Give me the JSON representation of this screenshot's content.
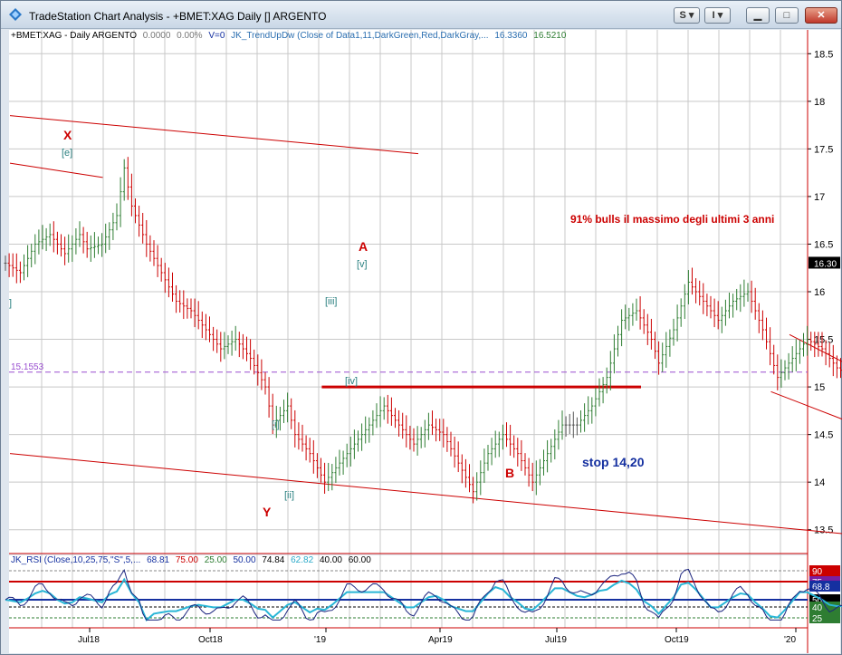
{
  "window": {
    "title": "TradeStation Chart Analysis - +BMET:XAG Daily [] ARGENTO",
    "buttons": {
      "s_label": "S ▾",
      "i_label": "I ▾"
    }
  },
  "legend": {
    "symbol": "+BMET:XAG - Daily  ARGENTO",
    "change": "0.0000",
    "pct": "0.00%",
    "volume": "V=0",
    "indicator": "JK_TrendUpDw (Close of Data1,11,DarkGreen,Red,DarkGray,...",
    "val1": "16.3360",
    "val2": "16.5210"
  },
  "sub_legend": {
    "name": "JK_RSI (Close,10,25,75,\"S\",5,...",
    "v1": "68.81",
    "v2": "75.00",
    "v3": "25.00",
    "v4": "50.00",
    "v5": "74.84",
    "v6": "62.82",
    "v7": "40.00",
    "v8": "60.00"
  },
  "colors": {
    "red": "#cc0000",
    "green": "#2e7d32",
    "teal": "#2a8080",
    "purple": "#9a4fd0",
    "navy": "#1530a0"
  },
  "chart_data": {
    "type": "bar",
    "price_axis": {
      "ticks": [
        18.5,
        18,
        17.5,
        17,
        16.5,
        16,
        15.5,
        15,
        14.5,
        14,
        13.5
      ],
      "ylim": [
        13.25,
        18.75
      ]
    },
    "current_price_label": "16.30",
    "x_ticks": [
      "Jul18",
      "Oct18",
      "'19",
      "Apr19",
      "Jul19",
      "Oct19",
      "'20"
    ],
    "hline": {
      "label": "15.1553",
      "value": 15.1553
    },
    "wave_labels": {
      "X": "X",
      "e": "[e]",
      "A": "A",
      "v": "[v]",
      "iii": "[iii]",
      "iv": "[iv]",
      "i": "[i]",
      "ii": "[ii]",
      "Y": "Y",
      "B": "B",
      "left_frag": "]"
    },
    "annotations": {
      "bulls": "91% bulls il massimo degli ultimi 3 anni",
      "stop": "stop 14,20"
    },
    "rsi": {
      "levels": [
        90,
        75,
        68.8,
        50,
        40,
        25
      ],
      "labels": [
        "90",
        "75",
        "68.8",
        "50",
        "40",
        "25"
      ]
    },
    "price_path": [
      [
        0,
        16.3
      ],
      [
        2,
        16.2
      ],
      [
        4,
        16.5
      ],
      [
        6,
        16.6
      ],
      [
        8,
        16.4
      ],
      [
        10,
        16.6
      ],
      [
        11,
        16.45
      ],
      [
        13,
        16.5
      ],
      [
        15,
        16.8
      ],
      [
        16,
        17.3
      ],
      [
        17,
        16.9
      ],
      [
        19,
        16.5
      ],
      [
        21,
        16.2
      ],
      [
        23,
        15.9
      ],
      [
        25,
        15.8
      ],
      [
        27,
        15.6
      ],
      [
        29,
        15.4
      ],
      [
        31,
        15.5
      ],
      [
        33,
        15.3
      ],
      [
        35,
        15.0
      ],
      [
        36,
        14.6
      ],
      [
        38,
        14.8
      ],
      [
        39,
        14.5
      ],
      [
        41,
        14.3
      ],
      [
        43,
        14.0
      ],
      [
        45,
        14.2
      ],
      [
        47,
        14.4
      ],
      [
        49,
        14.6
      ],
      [
        51,
        14.8
      ],
      [
        53,
        14.6
      ],
      [
        55,
        14.4
      ],
      [
        57,
        14.6
      ],
      [
        59,
        14.5
      ],
      [
        61,
        14.2
      ],
      [
        63,
        13.9
      ],
      [
        65,
        14.3
      ],
      [
        67,
        14.5
      ],
      [
        69,
        14.3
      ],
      [
        71,
        14.0
      ],
      [
        73,
        14.3
      ],
      [
        75,
        14.6
      ],
      [
        77,
        14.6
      ],
      [
        79,
        14.8
      ],
      [
        81,
        15.1
      ],
      [
        83,
        15.7
      ],
      [
        85,
        15.8
      ],
      [
        87,
        15.5
      ],
      [
        88,
        15.25
      ],
      [
        90,
        15.6
      ],
      [
        92,
        16.1
      ],
      [
        94,
        15.9
      ],
      [
        96,
        15.7
      ],
      [
        98,
        15.9
      ],
      [
        100,
        16.0
      ],
      [
        102,
        15.6
      ],
      [
        104,
        15.1
      ],
      [
        106,
        15.3
      ],
      [
        108,
        15.5
      ],
      [
        110,
        15.4
      ],
      [
        112,
        15.2
      ],
      [
        114,
        15.1
      ],
      [
        116,
        14.95
      ],
      [
        118,
        15.1
      ],
      [
        120,
        14.9
      ],
      [
        122,
        14.8
      ],
      [
        124,
        14.7
      ],
      [
        126,
        14.6
      ],
      [
        128,
        14.45
      ],
      [
        130,
        14.5
      ],
      [
        132,
        14.8
      ],
      [
        134,
        15.0
      ],
      [
        136,
        15.2
      ],
      [
        138,
        15.4
      ],
      [
        140,
        15.3
      ],
      [
        142,
        15.1
      ],
      [
        144,
        15.2
      ],
      [
        146,
        15.8
      ],
      [
        148,
        16.2
      ],
      [
        150,
        16.4
      ],
      [
        151,
        16.5
      ],
      [
        152,
        16.35
      ]
    ],
    "trend_lines": [
      {
        "x1": 0,
        "y1": 17.85,
        "x2": 110,
        "y2": 17.45
      },
      {
        "x1": 0,
        "y1": 17.35,
        "x2": 25,
        "y2": 17.2
      },
      {
        "x1": 0,
        "y1": 14.3,
        "x2": 280,
        "y2": 13.25
      },
      {
        "x1": 84,
        "y1": 15.0,
        "x2": 170,
        "y2": 15.0
      },
      {
        "x1": 210,
        "y1": 15.55,
        "x2": 250,
        "y2": 14.75
      },
      {
        "x1": 205,
        "y1": 14.95,
        "x2": 245,
        "y2": 14.35
      },
      {
        "x1": 240,
        "y1": 14.28,
        "x2": 272,
        "y2": 14.28
      },
      {
        "x1": 265,
        "y1": 14.95,
        "x2": 302,
        "y2": 16.6
      }
    ]
  }
}
